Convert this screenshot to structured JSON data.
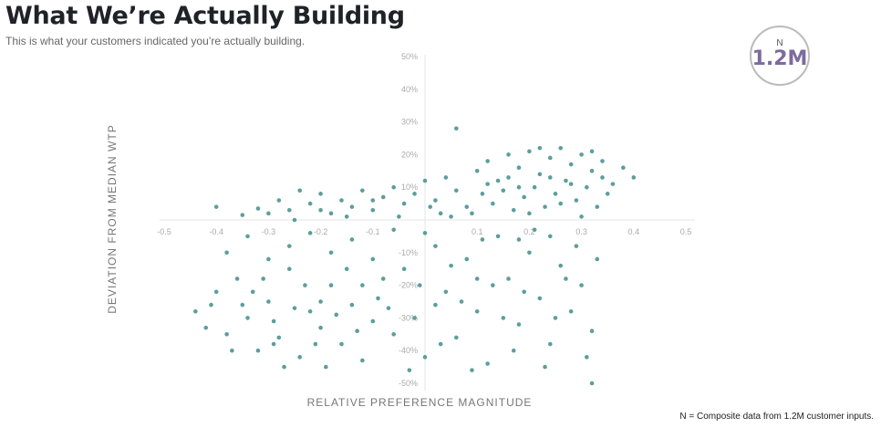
{
  "header": {
    "title": "What We’re Actually Building",
    "subtitle": "This is what your customers indicated you’re actually building."
  },
  "badge": {
    "label": "N",
    "value": "1.2M"
  },
  "footnote": "N = Composite data from 1.2M customer inputs.",
  "chart_data": {
    "type": "scatter",
    "xlabel": "RELATIVE PREFERENCE MAGNITUDE",
    "ylabel": "DEVIATION FROM MEDIAN WTP",
    "xlim": [
      -0.5,
      0.5
    ],
    "ylim": [
      -50,
      50
    ],
    "x_ticks": [
      "-0.5",
      "-0.4",
      "-0.3",
      "-0.2",
      "-0.1",
      "0",
      "0.1",
      "0.2",
      "0.3",
      "0.4",
      "0.5"
    ],
    "x_tick_values": [
      -0.5,
      -0.4,
      -0.3,
      -0.2,
      -0.1,
      0,
      0.1,
      0.2,
      0.3,
      0.4,
      0.5
    ],
    "y_ticks": [
      "50%",
      "40%",
      "30%",
      "20%",
      "10%",
      "0%",
      "-10%",
      "-20%",
      "-30%",
      "-40%",
      "-50%"
    ],
    "y_tick_values": [
      50,
      40,
      30,
      20,
      10,
      0,
      -10,
      -20,
      -30,
      -40,
      -50
    ],
    "grid": false,
    "point_color": "#5c9e9b",
    "points": [
      [
        0.1,
        15
      ],
      [
        0.12,
        18
      ],
      [
        0.14,
        12
      ],
      [
        0.16,
        20
      ],
      [
        0.18,
        16
      ],
      [
        0.2,
        21
      ],
      [
        0.22,
        14
      ],
      [
        0.24,
        19
      ],
      [
        0.26,
        22
      ],
      [
        0.28,
        17
      ],
      [
        0.3,
        20
      ],
      [
        0.32,
        15
      ],
      [
        0.34,
        18
      ],
      [
        0.36,
        11
      ],
      [
        0.38,
        16
      ],
      [
        0.11,
        8
      ],
      [
        0.13,
        5
      ],
      [
        0.15,
        9
      ],
      [
        0.17,
        3
      ],
      [
        0.19,
        7
      ],
      [
        0.21,
        10
      ],
      [
        0.23,
        4
      ],
      [
        0.25,
        8
      ],
      [
        0.27,
        12
      ],
      [
        0.29,
        6
      ],
      [
        0.31,
        10
      ],
      [
        0.33,
        4
      ],
      [
        0.35,
        8
      ],
      [
        0.09,
        2
      ],
      [
        0.2,
        2
      ],
      [
        0.3,
        1
      ],
      [
        0.24,
        13
      ],
      [
        0.28,
        11
      ],
      [
        0.16,
        13
      ],
      [
        0.12,
        11
      ],
      [
        0.34,
        13
      ],
      [
        0.32,
        21
      ],
      [
        0.22,
        22
      ],
      [
        0.26,
        5
      ],
      [
        0.18,
        10
      ],
      [
        -0.3,
        2
      ],
      [
        -0.28,
        6
      ],
      [
        -0.26,
        3
      ],
      [
        -0.24,
        9
      ],
      [
        -0.22,
        5
      ],
      [
        -0.2,
        8
      ],
      [
        -0.18,
        2
      ],
      [
        -0.16,
        6
      ],
      [
        -0.14,
        4
      ],
      [
        -0.12,
        9
      ],
      [
        -0.1,
        3
      ],
      [
        -0.08,
        7
      ],
      [
        -0.06,
        10
      ],
      [
        -0.04,
        5
      ],
      [
        -0.02,
        8
      ],
      [
        0,
        12
      ],
      [
        0.02,
        6
      ],
      [
        0.04,
        13
      ],
      [
        0.06,
        9
      ],
      [
        0.08,
        4
      ],
      [
        -0.05,
        1
      ],
      [
        -0.15,
        1
      ],
      [
        -0.25,
        0
      ],
      [
        0.03,
        2
      ],
      [
        -0.1,
        6
      ],
      [
        0.05,
        1
      ],
      [
        -0.2,
        3
      ],
      [
        0.01,
        4
      ],
      [
        0.06,
        28
      ],
      [
        -0.4,
        4
      ],
      [
        -0.35,
        1.5
      ],
      [
        -0.32,
        3.5
      ],
      [
        0.4,
        13
      ],
      [
        0.32,
        -50
      ],
      [
        -0.44,
        -28
      ],
      [
        -0.42,
        -33
      ],
      [
        -0.4,
        -22
      ],
      [
        -0.38,
        -35
      ],
      [
        -0.36,
        -18
      ],
      [
        -0.34,
        -30
      ],
      [
        -0.32,
        -40
      ],
      [
        -0.3,
        -25
      ],
      [
        -0.28,
        -36
      ],
      [
        -0.26,
        -15
      ],
      [
        -0.24,
        -42
      ],
      [
        -0.22,
        -28
      ],
      [
        -0.2,
        -33
      ],
      [
        -0.18,
        -20
      ],
      [
        -0.16,
        -38
      ],
      [
        -0.14,
        -26
      ],
      [
        -0.12,
        -43
      ],
      [
        -0.1,
        -31
      ],
      [
        -0.08,
        -18
      ],
      [
        -0.06,
        -35
      ],
      [
        -0.38,
        -10
      ],
      [
        -0.34,
        -5
      ],
      [
        -0.3,
        -12
      ],
      [
        -0.26,
        -8
      ],
      [
        -0.22,
        -4
      ],
      [
        -0.18,
        -10
      ],
      [
        -0.14,
        -6
      ],
      [
        -0.1,
        -12
      ],
      [
        -0.06,
        -3
      ],
      [
        -0.33,
        -22
      ],
      [
        -0.29,
        -31
      ],
      [
        -0.25,
        -27
      ],
      [
        -0.21,
        -38
      ],
      [
        -0.17,
        -29
      ],
      [
        -0.13,
        -34
      ],
      [
        -0.09,
        -24
      ],
      [
        -0.41,
        -26
      ],
      [
        -0.37,
        -40
      ],
      [
        -0.27,
        -45
      ],
      [
        -0.19,
        -45
      ],
      [
        -0.31,
        -18
      ],
      [
        -0.23,
        -20
      ],
      [
        -0.15,
        -15
      ],
      [
        -0.07,
        -27
      ],
      [
        -0.35,
        -26
      ],
      [
        -0.29,
        -38
      ],
      [
        -0.2,
        -25
      ],
      [
        -0.12,
        -20
      ],
      [
        -0.04,
        -15
      ],
      [
        -0.02,
        -30
      ],
      [
        0,
        -42
      ],
      [
        0.02,
        -8
      ],
      [
        0.04,
        -22
      ],
      [
        0.06,
        -36
      ],
      [
        0.08,
        -12
      ],
      [
        0.1,
        -28
      ],
      [
        0.12,
        -44
      ],
      [
        0.14,
        -5
      ],
      [
        0.16,
        -18
      ],
      [
        0.18,
        -32
      ],
      [
        0.2,
        -10
      ],
      [
        0.22,
        -24
      ],
      [
        0.24,
        -38
      ],
      [
        0.26,
        -14
      ],
      [
        0.28,
        -28
      ],
      [
        0.3,
        -20
      ],
      [
        0.32,
        -34
      ],
      [
        0.0,
        -4
      ],
      [
        0.05,
        -14
      ],
      [
        0.09,
        -46
      ],
      [
        0.13,
        -20
      ],
      [
        0.17,
        -40
      ],
      [
        0.21,
        -3
      ],
      [
        0.25,
        -30
      ],
      [
        0.29,
        -8
      ],
      [
        0.31,
        -42
      ],
      [
        -0.03,
        -46
      ],
      [
        0.03,
        -38
      ],
      [
        0.07,
        -25
      ],
      [
        0.11,
        -6
      ],
      [
        0.15,
        -30
      ],
      [
        0.19,
        -22
      ],
      [
        0.23,
        -45
      ],
      [
        0.27,
        -18
      ],
      [
        0.33,
        -12
      ],
      [
        0.18,
        -6
      ],
      [
        0.24,
        -5
      ],
      [
        0.1,
        -18
      ],
      [
        0.02,
        -26
      ],
      [
        -0.01,
        -20
      ]
    ]
  }
}
